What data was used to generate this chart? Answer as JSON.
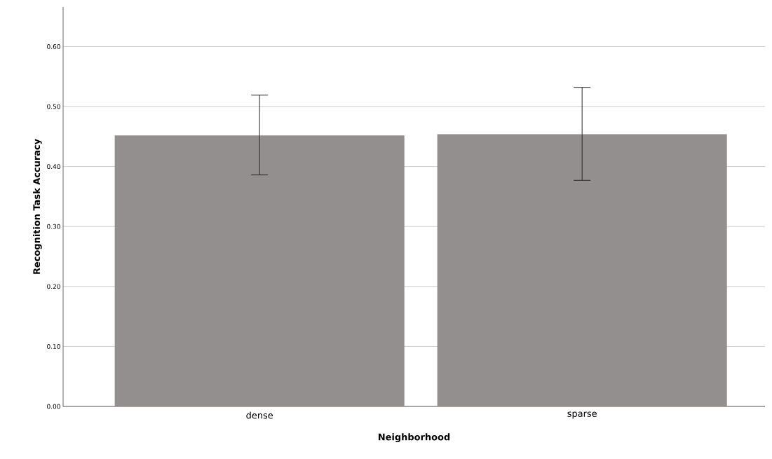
{
  "chart_data": {
    "type": "bar",
    "xlabel": "Neighborhood",
    "ylabel": "Recognition Task Accuracy",
    "categories": [
      "dense",
      "sparse"
    ],
    "values": [
      0.452,
      0.454
    ],
    "color": "#938f8e",
    "errors": [
      [
        0.386,
        0.519
      ],
      [
        0.377,
        0.532
      ]
    ],
    "ylim": [
      0,
      0.666
    ],
    "yticks": [
      {
        "value": 0,
        "label": "0.00"
      },
      {
        "value": 0.1,
        "label": "0.10"
      },
      {
        "value": 0.2,
        "label": "0.20"
      },
      {
        "value": 0.3,
        "label": "0.30"
      },
      {
        "value": 0.4,
        "label": "0.40"
      },
      {
        "value": 0.5,
        "label": "0.50"
      },
      {
        "value": 0.6,
        "label": "0.60"
      }
    ],
    "grid": "y"
  }
}
